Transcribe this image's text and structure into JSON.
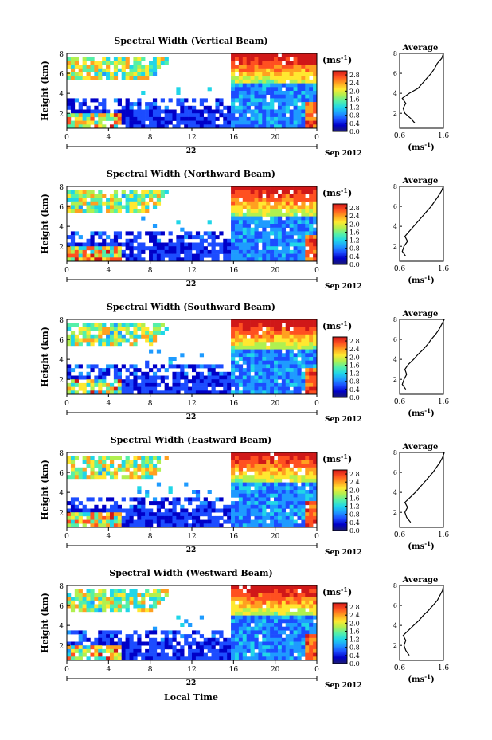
{
  "figure": {
    "x_axis_label": "Local Time",
    "date_label": "22",
    "month_year_label": "Sep 2012",
    "colorbar_unit": "(ms",
    "colorbar_unit_sup": "-1",
    "colorbar_unit_close": ")",
    "avg_title": "Average",
    "avg_xlabel": "(ms",
    "avg_xlabel_sup": "-1",
    "avg_xlabel_close": ")"
  },
  "chart_data": {
    "type": "heatmap",
    "panels": [
      {
        "id": "vertical",
        "title": "Spectral Width (Vertical Beam)"
      },
      {
        "id": "northward",
        "title": "Spectral Width (Northward Beam)"
      },
      {
        "id": "southward",
        "title": "Spectral Width (Southward Beam)"
      },
      {
        "id": "eastward",
        "title": "Spectral Width (Eastward Beam)"
      },
      {
        "id": "westward",
        "title": "Spectral Width (Westward Beam)"
      }
    ],
    "x_ticks": [
      "0",
      "4",
      "8",
      "12",
      "16",
      "20",
      "0"
    ],
    "y_ticks": [
      "2",
      "4",
      "6",
      "8"
    ],
    "y_label": "Height (km)",
    "xlim_hours": [
      0,
      24
    ],
    "ylim_km": [
      0.5,
      8
    ],
    "colorbar_ticks": [
      "0.0",
      "0.4",
      "0.8",
      "1.2",
      "1.6",
      "2.0",
      "2.4",
      "2.8"
    ],
    "colorbar_range": [
      0,
      3.0
    ],
    "colormap": [
      "#1b1b6e",
      "#0000c8",
      "#1c4cff",
      "#1e9bff",
      "#20d6e8",
      "#55f0a8",
      "#b0f050",
      "#ffe830",
      "#ffa020",
      "#ff5020",
      "#d01818"
    ],
    "average_profile": {
      "xlim": [
        0.6,
        1.6
      ],
      "x_ticks_by_panel": [
        [
          "0.6",
          "1.6"
        ],
        [
          "0.6",
          "1.6"
        ],
        [
          "0.6",
          "1.6"
        ],
        [
          "0.6",
          "1.6"
        ],
        [
          "0.6",
          "1.6"
        ]
      ],
      "ylim_km": [
        0.5,
        8
      ],
      "y_ticks": [
        "2",
        "4",
        "6",
        "8"
      ],
      "height_km": [
        1.0,
        1.5,
        2.0,
        2.5,
        3.0,
        3.5,
        4.0,
        4.5,
        5.0,
        5.5,
        6.0,
        6.5,
        7.0,
        7.5,
        8.0
      ],
      "profiles": [
        [
          0.95,
          0.85,
          0.72,
          0.68,
          0.74,
          0.66,
          0.82,
          1.02,
          1.12,
          1.22,
          1.32,
          1.4,
          1.46,
          1.56,
          1.6
        ],
        [
          0.74,
          0.66,
          0.7,
          0.78,
          0.72,
          0.82,
          0.92,
          1.02,
          1.12,
          1.22,
          1.32,
          1.4,
          1.48,
          1.55,
          1.6
        ],
        [
          0.74,
          0.66,
          0.7,
          0.76,
          0.72,
          0.8,
          0.92,
          1.02,
          1.14,
          1.24,
          1.32,
          1.42,
          1.5,
          1.56,
          1.62
        ],
        [
          0.85,
          0.76,
          0.72,
          0.78,
          0.72,
          0.84,
          0.96,
          1.06,
          1.16,
          1.26,
          1.36,
          1.44,
          1.52,
          1.58,
          1.62
        ],
        [
          0.82,
          0.74,
          0.7,
          0.74,
          0.68,
          0.8,
          0.92,
          1.04,
          1.14,
          1.26,
          1.36,
          1.46,
          1.52,
          1.58,
          1.6
        ]
      ]
    }
  }
}
